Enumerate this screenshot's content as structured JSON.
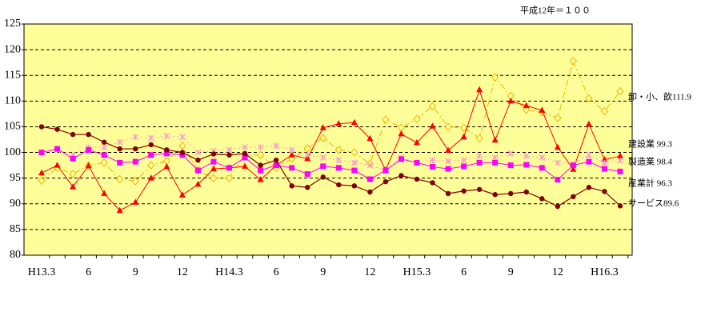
{
  "chart_data": {
    "type": "line",
    "note": "平成12年＝１００",
    "categories": [
      "H13.3",
      null,
      null,
      "6",
      null,
      null,
      "9",
      null,
      null,
      "12",
      null,
      null,
      "H14.3",
      null,
      null,
      "6",
      null,
      null,
      "9",
      null,
      null,
      "12",
      null,
      null,
      "H15.3",
      null,
      null,
      "6",
      null,
      null,
      "9",
      null,
      null,
      "12",
      null,
      null,
      "H16.3",
      null
    ],
    "ylim": [
      80,
      125
    ],
    "yticks": [
      80,
      85,
      90,
      95,
      100,
      105,
      110,
      115,
      120,
      125
    ],
    "grid": true,
    "series": [
      {
        "name": "卸・小、飲111.9",
        "color": "#f0b400",
        "marker": "diamond",
        "dash": "8,3,2,3",
        "values": [
          94.5,
          97,
          95.8,
          97.5,
          98,
          94.8,
          94.4,
          97.5,
          98.3,
          101.3,
          96.5,
          95,
          95,
          99.5,
          99.5,
          97,
          98.8,
          100.8,
          102.8,
          100.5,
          100,
          97.8,
          106.4,
          104.8,
          106.5,
          109,
          105,
          104.8,
          102.8,
          114.6,
          111,
          108.3,
          107.8,
          106.7,
          117.8,
          110.5,
          108,
          111.9
        ]
      },
      {
        "name": "建設業 99.3",
        "color": "#ff0000",
        "marker": "triangle",
        "dash": "none",
        "values": [
          96,
          97.5,
          93.3,
          97.4,
          92,
          88.7,
          90.3,
          95,
          97.2,
          91.7,
          93.8,
          96.8,
          97,
          97.3,
          94.7,
          97.5,
          99.5,
          98.8,
          104.8,
          105.6,
          105.8,
          102.7,
          96.6,
          103.6,
          101.9,
          105.1,
          100.4,
          103,
          112.2,
          102.4,
          110,
          109.1,
          108.2,
          101,
          96.7,
          105.5,
          98.6,
          99.3
        ]
      },
      {
        "name": "製造業 98.4",
        "color": "#ff99cc",
        "marker": "star",
        "dash": "2,3",
        "values": [
          100,
          100.5,
          99.5,
          101,
          101,
          102,
          103,
          102.8,
          103.2,
          103,
          100,
          100.3,
          100.5,
          101,
          101,
          101.3,
          100.5,
          99.5,
          99,
          98.5,
          98,
          97.5,
          96.5,
          99,
          98,
          98.5,
          98.3,
          98.5,
          99.3,
          99,
          99.8,
          99.3,
          99,
          98,
          97.7,
          99.5,
          98,
          98.4
        ]
      },
      {
        "name": "産業計 96.3",
        "color": "#ff00ff",
        "marker": "square",
        "dash": "none",
        "values": [
          100,
          100.7,
          98.8,
          100.5,
          99.5,
          98,
          98.2,
          99.5,
          99.8,
          99.5,
          96.5,
          98.2,
          97,
          99,
          96.5,
          97.5,
          97,
          95.8,
          97.3,
          97,
          96.5,
          94.8,
          96.5,
          98.7,
          98,
          97.2,
          96.8,
          97.3,
          98,
          98,
          97.5,
          97.6,
          97,
          94.7,
          97.5,
          98.2,
          96.8,
          96.3
        ]
      },
      {
        "name": "サービス89.6",
        "color": "#800000",
        "marker": "circle",
        "dash": "none",
        "values": [
          105,
          104.5,
          103.5,
          103.5,
          102,
          100.7,
          100.7,
          101.5,
          100.5,
          100,
          98.5,
          99.7,
          99.5,
          99.8,
          97.5,
          98.5,
          93.5,
          93.2,
          95.2,
          93.7,
          93.5,
          92.3,
          94.3,
          95.5,
          94.8,
          94.1,
          92,
          92.5,
          92.8,
          91.8,
          92,
          92.3,
          91,
          89.5,
          91.4,
          93.2,
          92.4,
          89.6
        ]
      }
    ]
  }
}
